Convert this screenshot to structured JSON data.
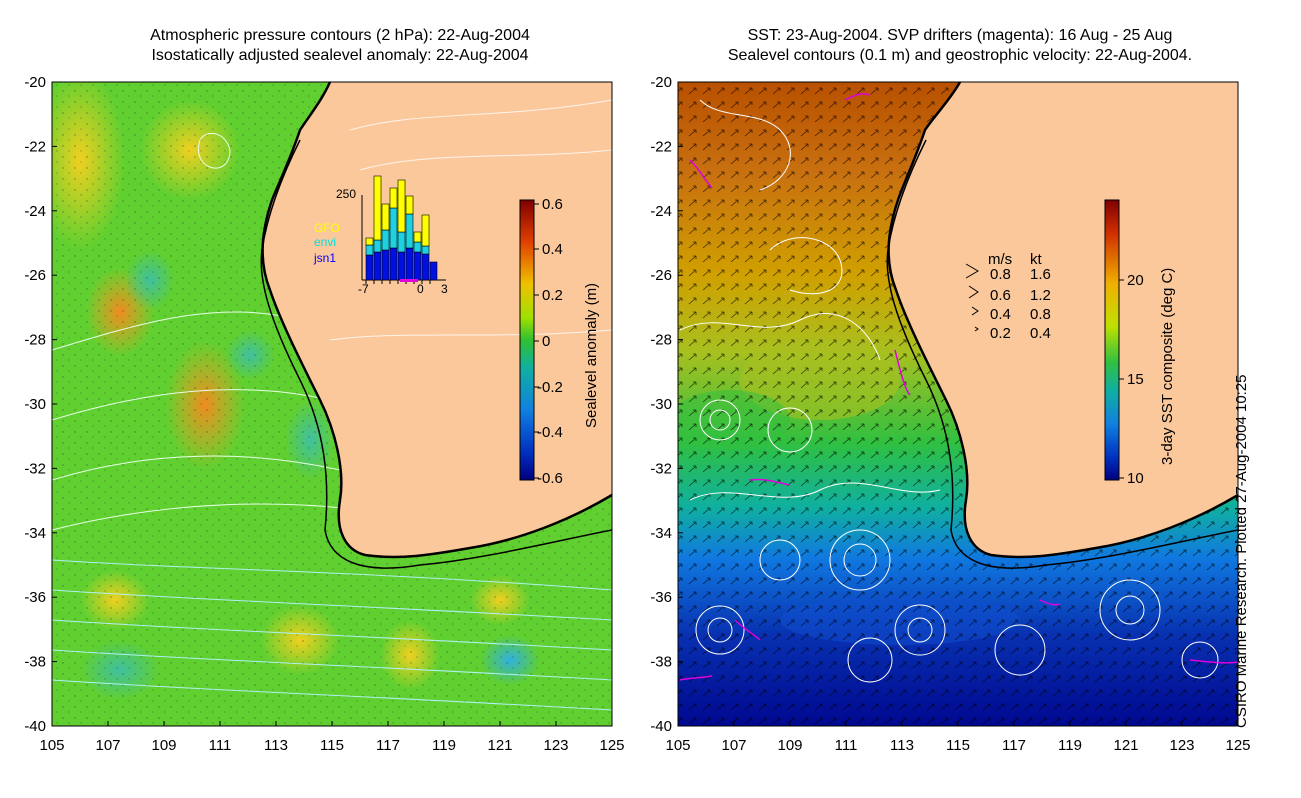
{
  "titles": {
    "left_line1": "Atmospheric pressure contours (2 hPa): 22-Aug-2004",
    "left_line2": "Isostatically adjusted sealevel anomaly: 22-Aug-2004",
    "right_line1": "SST: 23-Aug-2004. SVP drifters (magenta): 16 Aug - 25 Aug",
    "right_line2": "Sealevel contours (0.1 m) and geostrophic velocity: 22-Aug-2004."
  },
  "axes": {
    "lat_ticks": [
      "-20",
      "-22",
      "-24",
      "-26",
      "-28",
      "-30",
      "-32",
      "-34",
      "-36",
      "-38",
      "-40"
    ],
    "lon_ticks": [
      "105",
      "107",
      "109",
      "111",
      "113",
      "115",
      "117",
      "119",
      "121",
      "123",
      "125"
    ]
  },
  "colorbar_left": {
    "label": "Sealevel anomaly (m)",
    "ticks": [
      "0.6",
      "0.4",
      "0.2",
      "0",
      "-0.2",
      "-0.4",
      "-0.6"
    ],
    "min": -0.6,
    "max": 0.6
  },
  "colorbar_right": {
    "label": "3-day SST composite (deg C)",
    "ticks": [
      "20",
      "15",
      "10"
    ],
    "min": 10,
    "max": 24
  },
  "inset_histogram": {
    "ymax_label": "250",
    "x_labels": [
      "-7",
      "0",
      "3"
    ],
    "legend": [
      "GFO",
      "envi",
      "jsn1"
    ],
    "legend_colors": [
      "#ffff00",
      "#00e0e0",
      "#0000ff"
    ]
  },
  "velocity_legend": {
    "header_ms": "m/s",
    "header_kt": "kt",
    "rows": [
      {
        "ms": "0.8",
        "kt": "1.6"
      },
      {
        "ms": "0.6",
        "kt": "1.2"
      },
      {
        "ms": "0.4",
        "kt": "0.8"
      },
      {
        "ms": "0.2",
        "kt": "0.4"
      }
    ]
  },
  "footer": "CSIRO Marine Research. Plotted 27-Aug-2004 10:25",
  "colors": {
    "land": "#fbc89c",
    "coast": "#000000",
    "contour": "#ffffff",
    "drifter": "#e000e0"
  }
}
